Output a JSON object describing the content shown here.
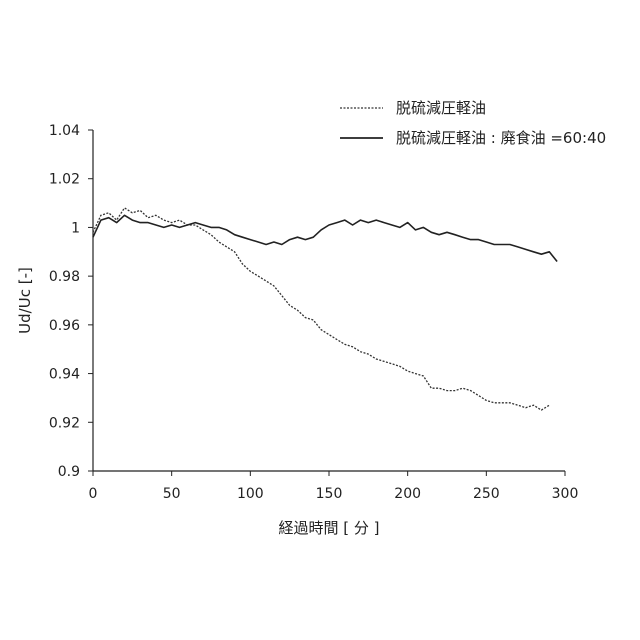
{
  "chart_data": {
    "type": "line",
    "title": "",
    "xlabel": "経過時間 [ 分 ]",
    "ylabel": "Ud/Uc [-]",
    "xlim": [
      0,
      300
    ],
    "ylim": [
      0.9,
      1.04
    ],
    "xticks": [
      0,
      50,
      100,
      150,
      200,
      250,
      300
    ],
    "yticks": [
      0.9,
      0.92,
      0.94,
      0.96,
      0.98,
      1.0,
      1.02,
      1.04
    ],
    "xtick_labels": [
      "0",
      "50",
      "100",
      "150",
      "200",
      "250",
      "300"
    ],
    "ytick_labels": [
      "0.9",
      "0.92",
      "0.94",
      "0.96",
      "0.98",
      "1",
      "1.02",
      "1.04"
    ],
    "grid": false,
    "legend_position": "top-right",
    "series": [
      {
        "name": "脱硫減圧軽油",
        "style": "dotted",
        "color": "#333333",
        "x": [
          0,
          5,
          10,
          15,
          20,
          25,
          30,
          35,
          40,
          45,
          50,
          55,
          60,
          65,
          70,
          75,
          80,
          85,
          90,
          95,
          100,
          105,
          110,
          115,
          120,
          125,
          130,
          135,
          140,
          145,
          150,
          155,
          160,
          165,
          170,
          175,
          180,
          185,
          190,
          195,
          200,
          205,
          210,
          215,
          220,
          225,
          230,
          235,
          240,
          245,
          250,
          255,
          260,
          265,
          270,
          275,
          280,
          285,
          290
        ],
        "y": [
          0.998,
          1.005,
          1.006,
          1.003,
          1.008,
          1.006,
          1.007,
          1.004,
          1.005,
          1.003,
          1.002,
          1.003,
          1.001,
          1.001,
          0.999,
          0.997,
          0.994,
          0.992,
          0.99,
          0.985,
          0.982,
          0.98,
          0.978,
          0.976,
          0.972,
          0.968,
          0.966,
          0.963,
          0.962,
          0.958,
          0.956,
          0.954,
          0.952,
          0.951,
          0.949,
          0.948,
          0.946,
          0.945,
          0.944,
          0.943,
          0.941,
          0.94,
          0.939,
          0.934,
          0.934,
          0.933,
          0.933,
          0.934,
          0.933,
          0.931,
          0.929,
          0.928,
          0.928,
          0.928,
          0.927,
          0.926,
          0.927,
          0.925,
          0.927
        ]
      },
      {
        "name": "脱硫減圧軽油 : 廃食油 =60:40",
        "style": "solid",
        "color": "#222222",
        "x": [
          0,
          5,
          10,
          15,
          20,
          25,
          30,
          35,
          40,
          45,
          50,
          55,
          60,
          65,
          70,
          75,
          80,
          85,
          90,
          95,
          100,
          105,
          110,
          115,
          120,
          125,
          130,
          135,
          140,
          145,
          150,
          155,
          160,
          165,
          170,
          175,
          180,
          185,
          190,
          195,
          200,
          205,
          210,
          215,
          220,
          225,
          230,
          235,
          240,
          245,
          250,
          255,
          260,
          265,
          270,
          275,
          280,
          285,
          290,
          295
        ],
        "y": [
          0.996,
          1.003,
          1.004,
          1.002,
          1.005,
          1.003,
          1.002,
          1.002,
          1.001,
          1.0,
          1.001,
          1.0,
          1.001,
          1.002,
          1.001,
          1.0,
          1.0,
          0.999,
          0.997,
          0.996,
          0.995,
          0.994,
          0.993,
          0.994,
          0.993,
          0.995,
          0.996,
          0.995,
          0.996,
          0.999,
          1.001,
          1.002,
          1.003,
          1.001,
          1.003,
          1.002,
          1.003,
          1.002,
          1.001,
          1.0,
          1.002,
          0.999,
          1.0,
          0.998,
          0.997,
          0.998,
          0.997,
          0.996,
          0.995,
          0.995,
          0.994,
          0.993,
          0.993,
          0.993,
          0.992,
          0.991,
          0.99,
          0.989,
          0.99,
          0.986
        ]
      }
    ]
  }
}
